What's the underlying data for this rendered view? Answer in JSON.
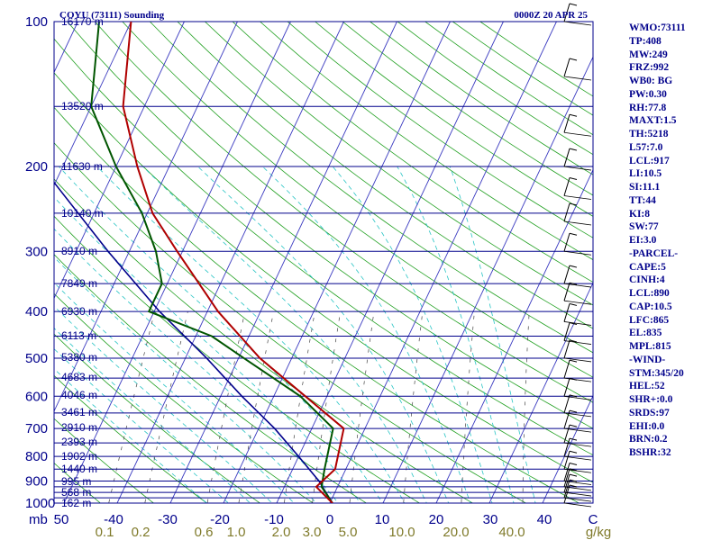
{
  "header": {
    "station": "COYU (73111) Sounding",
    "valid_time": "0000Z 20 APR 25"
  },
  "chart_data": {
    "type": "skew-t log-p sounding",
    "x_axis": {
      "temperature_ticks": [
        "50",
        "-40",
        "-30",
        "-20",
        "-10",
        "0",
        "10",
        "20",
        "30",
        "40",
        "C"
      ],
      "mixing_ratio_ticks": [
        "0.1",
        "0.2",
        "0.6",
        "1.0",
        "2.0",
        "3.0",
        "5.0",
        "10.0",
        "20.0",
        "40.0",
        "g/kg"
      ]
    },
    "y_axis": {
      "unit_label": "mb",
      "pressure_ticks": [
        "100",
        "200",
        "300",
        "400",
        "500",
        "600",
        "700",
        "800",
        "900",
        "1000"
      ],
      "height_labels": [
        "16170 m",
        "13520 m",
        "11630 m",
        "10140 m",
        "8910 m",
        "7849 m",
        "6930 m",
        "6113 m",
        "5380 m",
        "4683 m",
        "4046 m",
        "3461 m",
        "2910 m",
        "2393 m",
        "1902 m",
        "1440 m",
        "995 m",
        "568 m",
        "162 m"
      ],
      "scale": "log-pressure",
      "range": [
        1000,
        100
      ]
    },
    "series": [],
    "temperature_profile": [
      [
        1000,
        0.5
      ],
      [
        925,
        -4
      ],
      [
        850,
        -2
      ],
      [
        700,
        -4
      ],
      [
        500,
        -26
      ],
      [
        400,
        -38
      ],
      [
        300,
        -51
      ],
      [
        250,
        -59
      ],
      [
        200,
        -66
      ],
      [
        150,
        -74
      ],
      [
        100,
        -80
      ]
    ],
    "dewpoint_profile": [
      [
        1000,
        0.5
      ],
      [
        925,
        -3
      ],
      [
        850,
        -4
      ],
      [
        700,
        -6
      ],
      [
        600,
        -15
      ],
      [
        500,
        -29
      ],
      [
        450,
        -37
      ],
      [
        400,
        -51
      ],
      [
        350,
        -51
      ],
      [
        300,
        -55
      ],
      [
        250,
        -61
      ],
      [
        200,
        -70
      ],
      [
        150,
        -80
      ],
      [
        100,
        -86
      ]
    ],
    "parcel_profile": [
      [
        1000,
        0.5
      ],
      [
        900,
        -4
      ],
      [
        800,
        -10
      ],
      [
        700,
        -17
      ],
      [
        600,
        -26
      ],
      [
        500,
        -36
      ],
      [
        400,
        -49
      ],
      [
        300,
        -64
      ],
      [
        200,
        -84
      ],
      [
        150,
        -96
      ]
    ],
    "grid": true
  },
  "indices": [
    "WMO:73111",
    "TP:408",
    "MW:249",
    "FRZ:992",
    "WB0: BG",
    "PW:0.30",
    "RH:77.8",
    "MAXT:1.5",
    "TH:5218",
    "L57:7.0",
    "LCL:917",
    "LI:10.5",
    "SI:11.1",
    "TT:44",
    "KI:8",
    "SW:77",
    "EI:3.0",
    "-PARCEL-",
    "CAPE:5",
    "CINH:4",
    "LCL:890",
    "CAP:10.5",
    "LFC:865",
    "EL:835",
    "MPL:815",
    "-WIND-",
    "STM:345/20",
    "HEL:52",
    "SHR+:0.0",
    "SRDS:97",
    "EHI:0.0",
    "BRN:0.2",
    "BSHR:32"
  ],
  "colors": {
    "isobar": "#00008b",
    "isotherm": "#3a3ac0",
    "dry_adiabat": "#22a022",
    "moist_adiabat": "#27c4c4",
    "mixing_ratio": "#444444",
    "temperature": "#b00000",
    "dewpoint": "#005500",
    "parcel": "#00008b",
    "background": "#ffffff"
  }
}
